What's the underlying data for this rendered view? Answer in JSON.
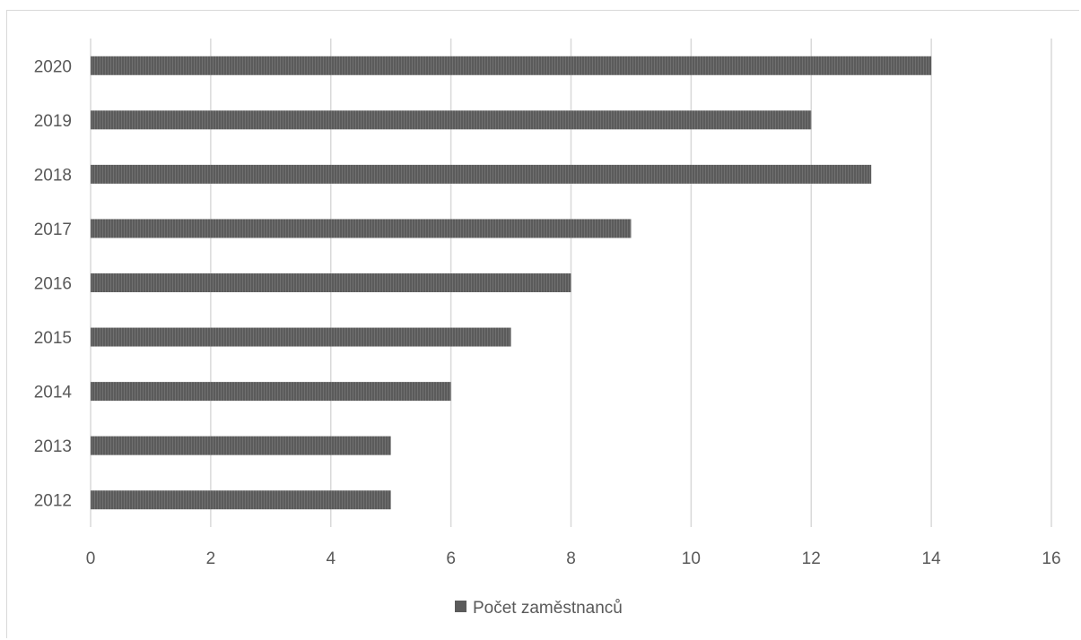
{
  "chart_data": {
    "type": "bar",
    "orientation": "horizontal",
    "categories": [
      "2012",
      "2013",
      "2014",
      "2015",
      "2016",
      "2017",
      "2018",
      "2019",
      "2020"
    ],
    "series": [
      {
        "name": "Počet zaměstnanců",
        "values": [
          5,
          5,
          6,
          7,
          8,
          9,
          13,
          12,
          14
        ],
        "color": "#5b5b5b"
      }
    ],
    "xlim": [
      0,
      16
    ],
    "x_ticks": [
      "0",
      "2",
      "4",
      "6",
      "8",
      "10",
      "12",
      "14",
      "16"
    ],
    "grid": "vertical",
    "legend_position": "bottom"
  }
}
